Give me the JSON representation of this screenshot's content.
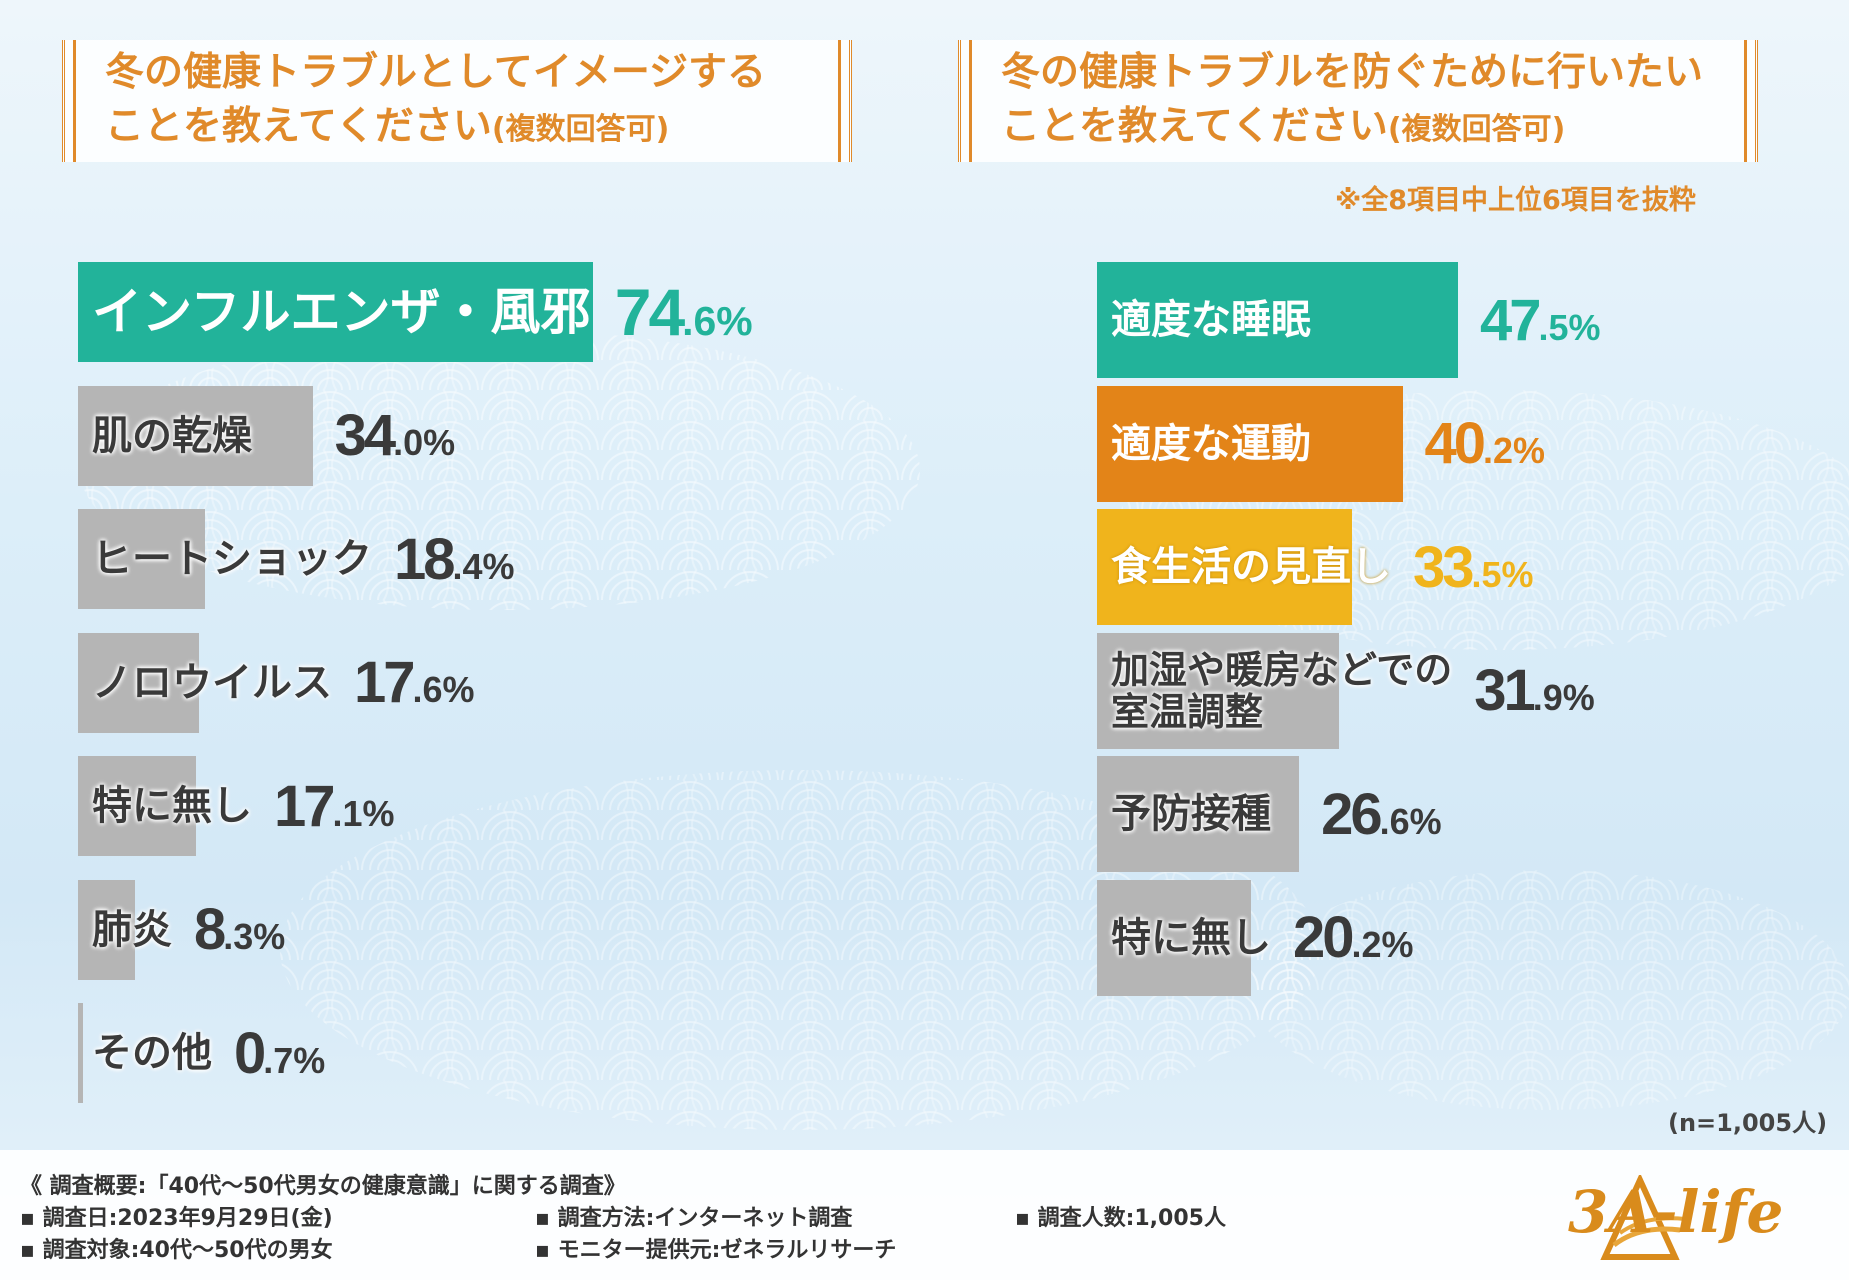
{
  "left_panel": {
    "title_line1": "冬の健康トラブルとしてイメージする",
    "title_line2_main": "ことを教えてください",
    "title_line2_sub": "(複数回答可)"
  },
  "right_panel": {
    "title_line1": "冬の健康トラブルを防ぐために行いたい",
    "title_line2_main": "ことを教えてください",
    "title_line2_sub": "(複数回答可)",
    "note": "※全8項目中上位6項目を抜粋"
  },
  "chart_data": [
    {
      "type": "bar",
      "orientation": "horizontal",
      "title": "冬の健康トラブルとしてイメージすることを教えてください(複数回答可)",
      "unit": "%",
      "categories": [
        "インフルエンザ・風邪",
        "肌の乾燥",
        "ヒートショック",
        "ノロウイルス",
        "特に無し",
        "肺炎",
        "その他"
      ],
      "values": [
        74.6,
        34.0,
        18.4,
        17.6,
        17.1,
        8.3,
        0.7
      ],
      "value_int": [
        "74",
        "34",
        "18",
        "17",
        "17",
        "8",
        "0"
      ],
      "value_dec": [
        ".6",
        ".0",
        ".4",
        ".6",
        ".1",
        ".3",
        ".7"
      ],
      "colors": [
        "#22b39a",
        "#b5b5b5",
        "#b5b5b5",
        "#b5b5b5",
        "#b5b5b5",
        "#b5b5b5",
        "#b5b5b5"
      ],
      "xlim": [
        0,
        100
      ]
    },
    {
      "type": "bar",
      "orientation": "horizontal",
      "title": "冬の健康トラブルを防ぐために行いたいことを教えてください(複数回答可)",
      "unit": "%",
      "categories": [
        "適度な睡眠",
        "適度な運動",
        "食生活の見直し",
        "加湿や暖房などでの\n室温調整",
        "予防接種",
        "特に無し"
      ],
      "values": [
        47.5,
        40.2,
        33.5,
        31.9,
        26.6,
        20.2
      ],
      "value_int": [
        "47",
        "40",
        "33",
        "31",
        "26",
        "20"
      ],
      "value_dec": [
        ".5",
        ".2",
        ".5",
        ".9",
        ".6",
        ".2"
      ],
      "colors": [
        "#22b39a",
        "#e38418",
        "#f0b41c",
        "#b5b5b5",
        "#b5b5b5",
        "#b5b5b5"
      ],
      "value_colors": [
        "#22b39a",
        "#e38418",
        "#f0b41c",
        "#3a3a3a",
        "#3a3a3a",
        "#3a3a3a"
      ],
      "xlim": [
        0,
        100
      ]
    }
  ],
  "sample_note": "(n=1,005人)",
  "footer": {
    "summary": "《 調査概要:「40代〜50代男女の健康意識」に関する調査》",
    "date": "▪ 調査日:2023年9月29日(金)",
    "target": "▪ 調査対象:40代〜50代の男女",
    "method": "▪ 調査方法:インターネット調査",
    "provider": "▪ モニター提供元:ゼネラルリサーチ",
    "count": "▪ 調査人数:1,005人",
    "logo": "3A-life"
  },
  "colors": {
    "accent": "#e08a2a",
    "teal": "#22b39a",
    "orange": "#e38418",
    "yellow": "#f0b41c",
    "gray": "#b5b5b5"
  }
}
